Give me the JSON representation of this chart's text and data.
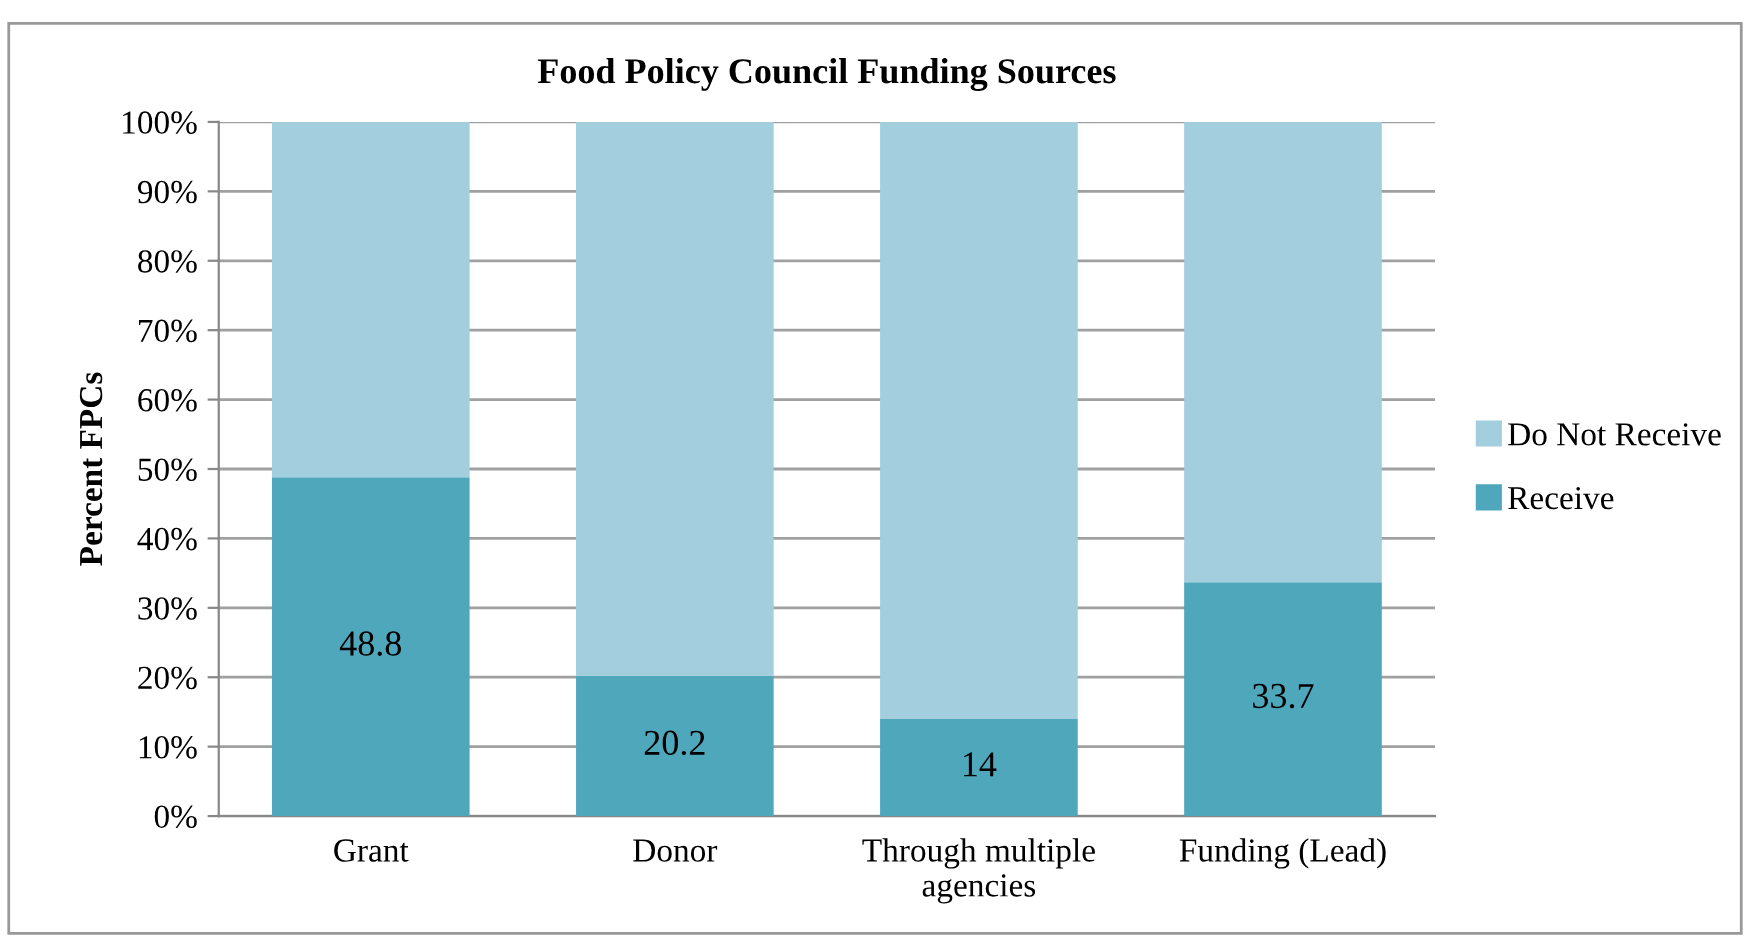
{
  "chart_data": {
    "type": "bar",
    "stacked": true,
    "title": "Food Policy Council Funding Sources",
    "ylabel": "Percent FPCs",
    "categories": [
      "Grant",
      "Donor",
      "Through multiple\nagencies",
      "Funding (Lead)"
    ],
    "series": [
      {
        "name": "Receive",
        "color": "#4fa7bc",
        "values": [
          48.8,
          20.2,
          14,
          33.7
        ],
        "value_labels": [
          "48.8",
          "20.2",
          "14",
          "33.7"
        ]
      },
      {
        "name": "Do Not Receive",
        "color": "#a2cedd",
        "values": [
          51.2,
          79.8,
          86,
          66.3
        ]
      }
    ],
    "ylim": [
      0,
      100
    ],
    "yticks": [
      {
        "value": 0,
        "label": "0%"
      },
      {
        "value": 10,
        "label": "10%"
      },
      {
        "value": 20,
        "label": "20%"
      },
      {
        "value": 30,
        "label": "30%"
      },
      {
        "value": 40,
        "label": "40%"
      },
      {
        "value": 50,
        "label": "50%"
      },
      {
        "value": 60,
        "label": "60%"
      },
      {
        "value": 70,
        "label": "70%"
      },
      {
        "value": 80,
        "label": "80%"
      },
      {
        "value": 90,
        "label": "90%"
      },
      {
        "value": 100,
        "label": "100%"
      }
    ],
    "grid": "y",
    "legend": "right"
  }
}
